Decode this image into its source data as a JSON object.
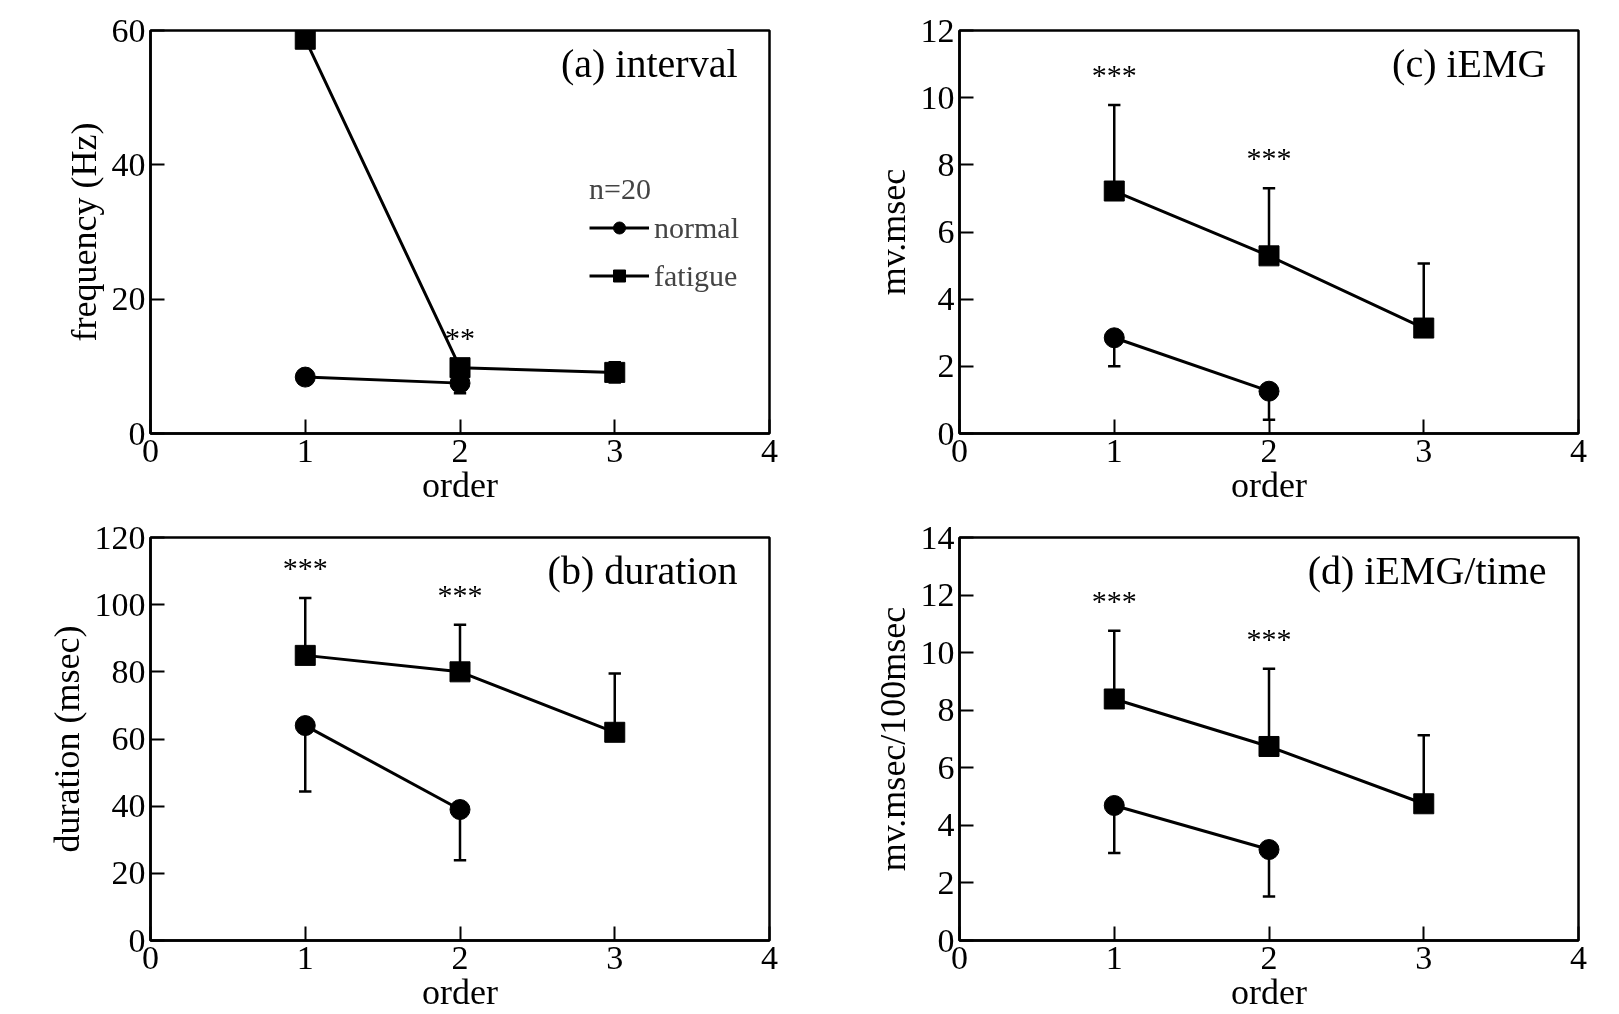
{
  "chart_data": [
    {
      "type": "line",
      "xlabel": "order",
      "ylabel": "frequency (Hz)",
      "x": [
        1,
        2,
        3
      ],
      "xlim": [
        0,
        4
      ],
      "xticks": [
        0,
        1,
        2,
        3,
        4
      ],
      "ylim": [
        0,
        60
      ],
      "yticks": [
        0,
        20,
        40,
        60
      ],
      "grid": false,
      "legend": "right",
      "legend_title": "n=20",
      "series": [
        {
          "name": "normal",
          "color": "#000000",
          "marker": "circle",
          "values": [
            8.4,
            7.5,
            null
          ],
          "errors": [
            1,
            1.5,
            null
          ]
        },
        {
          "name": "fatigue",
          "color": "#000000",
          "marker": "square",
          "values": [
            58.7,
            9.8,
            9.1
          ],
          "errors": [
            null,
            null,
            1.5
          ]
        }
      ],
      "annotations": [
        "(a)  interval",
        "**"
      ]
    },
    {
      "type": "line",
      "xlabel": "order",
      "ylabel": "mv.msec",
      "x": [
        1,
        2,
        3
      ],
      "xlim": [
        0,
        4
      ],
      "xticks": [
        0,
        1,
        2,
        3,
        4
      ],
      "ylim": [
        0,
        12
      ],
      "yticks": [
        0,
        2,
        4,
        6,
        8,
        10,
        12
      ],
      "grid": false,
      "series": [
        {
          "color": "#000000",
          "marker": "circle",
          "values": [
            2.85,
            1.26,
            null
          ],
          "errors": [
            [
              2.0,
              2.85
            ],
            [
              0.41,
              1.26
            ],
            null
          ]
        },
        {
          "color": "#000000",
          "marker": "square",
          "values": [
            7.22,
            5.29,
            3.14
          ],
          "errors": [
            [
              7.22,
              9.78
            ],
            [
              5.29,
              7.3
            ],
            [
              3.14,
              5.06
            ]
          ]
        }
      ],
      "annotations": [
        "(c)  iEMG",
        "***",
        "***"
      ]
    },
    {
      "type": "line",
      "xlabel": "order",
      "ylabel": "duration (msec)",
      "x": [
        1,
        2,
        3
      ],
      "xlim": [
        0,
        4
      ],
      "xticks": [
        0,
        1,
        2,
        3,
        4
      ],
      "ylim": [
        0,
        120
      ],
      "yticks": [
        0,
        20,
        40,
        60,
        80,
        100,
        120
      ],
      "grid": false,
      "series": [
        {
          "color": "#000000",
          "marker": "circle",
          "values": [
            64,
            39,
            null
          ],
          "errors": [
            [
              44.4,
              64
            ],
            [
              23.9,
              39
            ],
            null
          ]
        },
        {
          "color": "#000000",
          "marker": "square",
          "values": [
            84.9,
            80,
            62
          ],
          "errors": [
            [
              84.9,
              102
            ],
            [
              80,
              94
            ],
            [
              62,
              79.5
            ]
          ]
        }
      ],
      "annotations": [
        "(b)  duration",
        "***",
        "***"
      ]
    },
    {
      "type": "line",
      "xlabel": "order",
      "ylabel": "mv.msec/100msec",
      "x": [
        1,
        2,
        3
      ],
      "xlim": [
        0,
        4
      ],
      "xticks": [
        0,
        1,
        2,
        3,
        4
      ],
      "ylim": [
        0,
        14
      ],
      "yticks": [
        0,
        2,
        4,
        6,
        8,
        10,
        12,
        14
      ],
      "grid": false,
      "series": [
        {
          "color": "#000000",
          "marker": "circle",
          "values": [
            4.69,
            3.16,
            null
          ],
          "errors": [
            [
              3.04,
              4.69
            ],
            [
              1.53,
              3.16
            ],
            null
          ]
        },
        {
          "color": "#000000",
          "marker": "square",
          "values": [
            8.39,
            6.74,
            4.75
          ],
          "errors": [
            [
              8.39,
              10.76
            ],
            [
              6.74,
              9.44
            ],
            [
              4.75,
              7.13
            ]
          ]
        }
      ],
      "annotations": [
        "(d)  iEMG/time",
        "***",
        "***"
      ]
    }
  ]
}
